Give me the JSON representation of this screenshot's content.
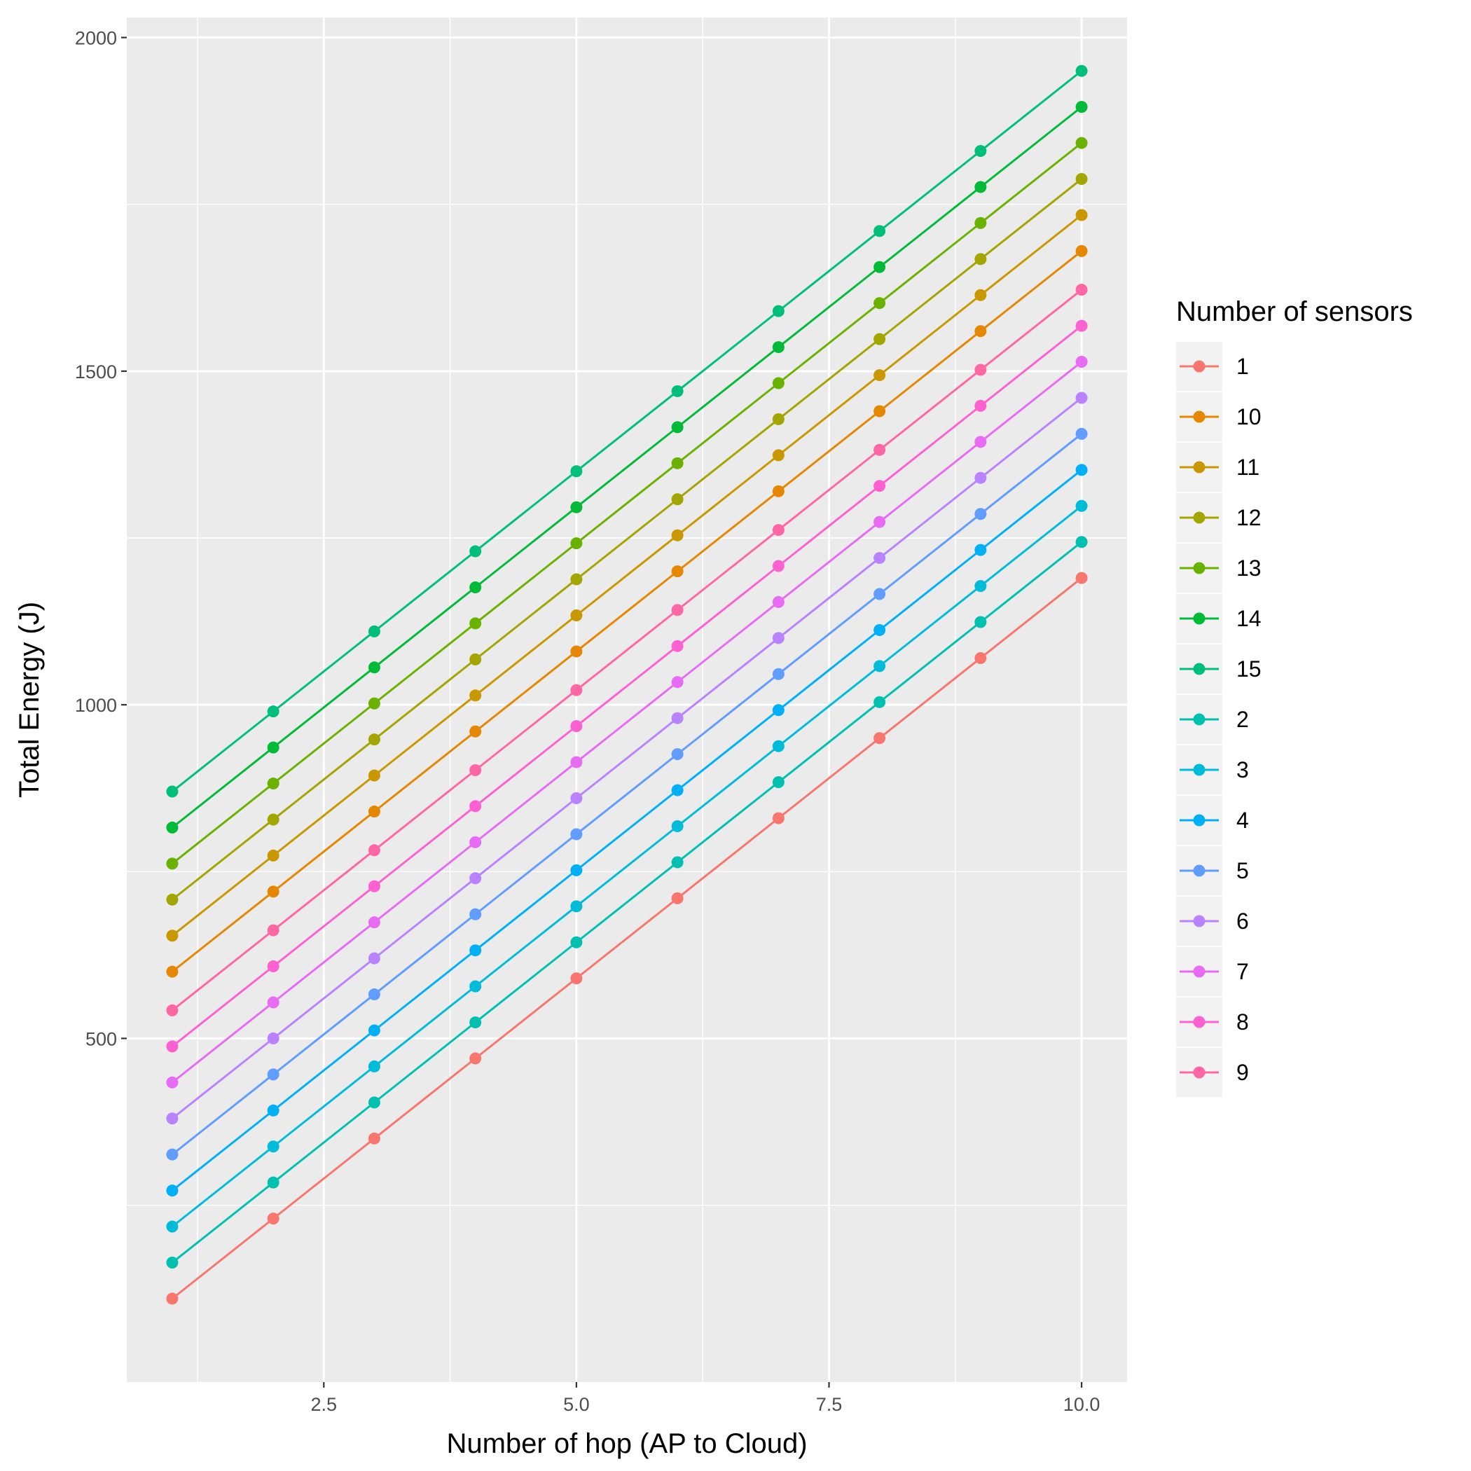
{
  "chart_data": {
    "type": "line",
    "xlabel": "Number of hop (AP to Cloud)",
    "ylabel": "Total Energy (J)",
    "xlim": [
      0.55,
      10.45
    ],
    "ylim": [
      -15,
      2030
    ],
    "x_ticks": [
      2.5,
      5.0,
      7.5,
      10.0
    ],
    "x_tick_labels": [
      "2.5",
      "5.0",
      "7.5",
      "10.0"
    ],
    "y_ticks": [
      500,
      1000,
      1500,
      2000
    ],
    "y_tick_labels": [
      "500",
      "1000",
      "1500",
      "2000"
    ],
    "grid": true,
    "legend_title": "Number of sensors",
    "legend_position": "right",
    "x": [
      1,
      2,
      3,
      4,
      5,
      6,
      7,
      8,
      9,
      10
    ],
    "series": [
      {
        "name": "1",
        "color": "#F8766D",
        "values": [
          110,
          230,
          350,
          470,
          590,
          710,
          830,
          950,
          1070,
          1190
        ]
      },
      {
        "name": "10",
        "color": "#E58700",
        "values": [
          600,
          720,
          840,
          960,
          1080,
          1200,
          1320,
          1440,
          1560,
          1680
        ]
      },
      {
        "name": "11",
        "color": "#C99800",
        "values": [
          654,
          774,
          894,
          1014,
          1134,
          1254,
          1374,
          1494,
          1614,
          1734
        ]
      },
      {
        "name": "12",
        "color": "#A3A500",
        "values": [
          708,
          828,
          948,
          1068,
          1188,
          1308,
          1428,
          1548,
          1668,
          1788
        ]
      },
      {
        "name": "13",
        "color": "#6BB100",
        "values": [
          762,
          882,
          1002,
          1122,
          1242,
          1362,
          1482,
          1602,
          1722,
          1842
        ]
      },
      {
        "name": "14",
        "color": "#00BA38",
        "values": [
          816,
          936,
          1056,
          1176,
          1296,
          1416,
          1536,
          1656,
          1776,
          1896
        ]
      },
      {
        "name": "15",
        "color": "#00BF7D",
        "values": [
          870,
          990,
          1110,
          1230,
          1350,
          1470,
          1590,
          1710,
          1830,
          1950
        ]
      },
      {
        "name": "2",
        "color": "#00C0AF",
        "values": [
          164,
          284,
          404,
          524,
          644,
          764,
          884,
          1004,
          1124,
          1244
        ]
      },
      {
        "name": "3",
        "color": "#00BCD8",
        "values": [
          218,
          338,
          458,
          578,
          698,
          818,
          938,
          1058,
          1178,
          1298
        ]
      },
      {
        "name": "4",
        "color": "#00B0F6",
        "values": [
          272,
          392,
          512,
          632,
          752,
          872,
          992,
          1112,
          1232,
          1352
        ]
      },
      {
        "name": "5",
        "color": "#619CFF",
        "values": [
          326,
          446,
          566,
          686,
          806,
          926,
          1046,
          1166,
          1286,
          1406
        ]
      },
      {
        "name": "6",
        "color": "#B983FF",
        "values": [
          380,
          500,
          620,
          740,
          860,
          980,
          1100,
          1220,
          1340,
          1460
        ]
      },
      {
        "name": "7",
        "color": "#E76BF3",
        "values": [
          434,
          554,
          674,
          794,
          914,
          1034,
          1154,
          1274,
          1394,
          1514
        ]
      },
      {
        "name": "8",
        "color": "#FD61D1",
        "values": [
          488,
          608,
          728,
          848,
          968,
          1088,
          1208,
          1328,
          1448,
          1568
        ]
      },
      {
        "name": "9",
        "color": "#FF67A4",
        "values": [
          542,
          662,
          782,
          902,
          1022,
          1142,
          1262,
          1382,
          1502,
          1622
        ]
      }
    ]
  }
}
